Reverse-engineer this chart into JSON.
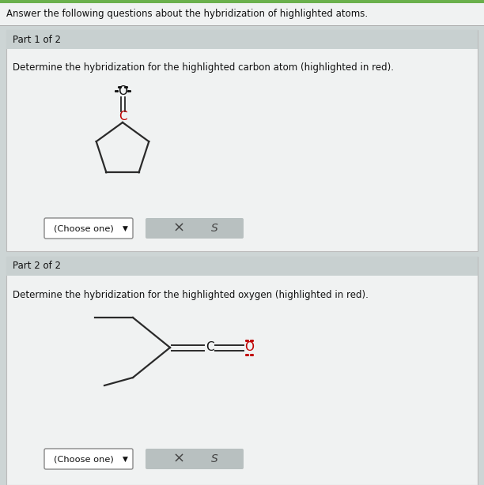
{
  "bg_color": "#cdd5d5",
  "panel_bg": "#c8d0d0",
  "white_bg": "#f0f2f2",
  "inner_white": "#f5f7f7",
  "title_text": "Answer the following questions about the hybridization of highlighted atoms.",
  "part1_label": "Part 1 of 2",
  "part1_desc": "Determine the hybridization for the highlighted carbon atom (highlighted in red).",
  "part2_label": "Part 2 of 2",
  "part2_desc": "Determine the hybridization for the highlighted oxygen (highlighted in red).",
  "choose_btn": "(Choose one)",
  "line_color": "#2a2a2a",
  "red_color": "#c00000",
  "black_color": "#111111",
  "gray_btn_bg": "#b8c0c0",
  "white_btn_bg": "#ffffff",
  "border_color": "#999999",
  "green_top": "#6ab04c",
  "title_bg": "#f0f2f2"
}
